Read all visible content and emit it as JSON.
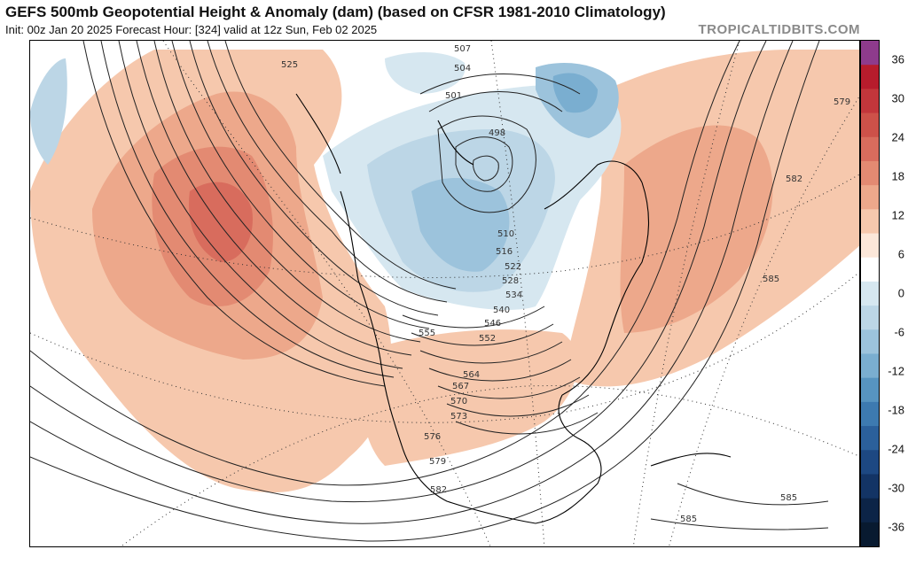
{
  "header": {
    "title": "GEFS 500mb Geopotential Height & Anomaly (dam) (based on CFSR 1981-2010 Climatology)",
    "subtitle": "Init: 00z Jan 20 2025   Forecast Hour: [324]   valid at 12z Sun, Feb 02 2025",
    "brand": "TROPICALTIDBITS.COM"
  },
  "colorbar": {
    "labels": [
      "36",
      "30",
      "24",
      "18",
      "12",
      "6",
      "0",
      "-6",
      "-12",
      "-18",
      "-24",
      "-30",
      "-36"
    ],
    "colors": [
      "#8e3b8c",
      "#b71c2c",
      "#c2363b",
      "#cd5149",
      "#d86c5d",
      "#e38a72",
      "#eda88b",
      "#f6c8ad",
      "#fce7d9",
      "#ffffff",
      "#d6e7f0",
      "#bcd6e6",
      "#9cc3dc",
      "#7aaed0",
      "#5794c0",
      "#3d7ab0",
      "#2b609b",
      "#1d4882",
      "#133465",
      "#0c2447",
      "#081a30"
    ]
  },
  "contour_labels": [
    "507",
    "504",
    "501",
    "498",
    "525",
    "510",
    "516",
    "522",
    "528",
    "534",
    "540",
    "546",
    "552",
    "555",
    "564",
    "567",
    "570",
    "573",
    "576",
    "579",
    "582",
    "585",
    "579",
    "582",
    "585",
    "585"
  ]
}
